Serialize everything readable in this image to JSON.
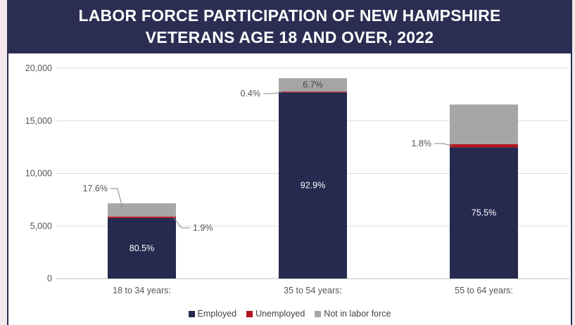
{
  "chart_data": {
    "type": "bar",
    "stacked": true,
    "title": "LABOR FORCE PARTICIPATION OF NEW HAMPSHIRE VETERANS AGE 18 AND OVER, 2022",
    "title_lines": [
      "LABOR FORCE PARTICIPATION OF NEW HAMPSHIRE",
      "VETERANS AGE 18 AND OVER, 2022"
    ],
    "categories": [
      "18 to 34 years:",
      "35 to 54 years:",
      "55 to 64 years:"
    ],
    "series": [
      {
        "name": "Employed",
        "color": "#262a4f",
        "values": [
          5760,
          17700,
          12480
        ],
        "labels": [
          "80.5%",
          "92.9%",
          "75.5%"
        ]
      },
      {
        "name": "Unemployed",
        "color": "#b4151f",
        "values": [
          140,
          80,
          300
        ],
        "labels": [
          "1.9%",
          "0.4%",
          "1.8%"
        ]
      },
      {
        "name": "Not in labor force",
        "color": "#a6a6a6",
        "values": [
          1250,
          1280,
          3770
        ],
        "labels": [
          "17.6%",
          "6.7%",
          ""
        ]
      }
    ],
    "yticks": [
      "0",
      "5,000",
      "10,000",
      "15,000",
      "20,000"
    ],
    "ylim": [
      0,
      20000
    ],
    "grid": true,
    "legend": "bottom-center"
  }
}
